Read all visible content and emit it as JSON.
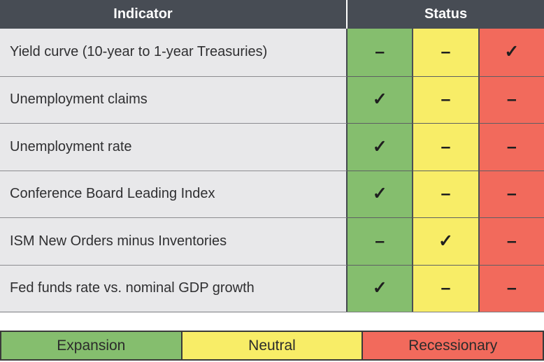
{
  "header": {
    "indicator": "Indicator",
    "status": "Status"
  },
  "rows": [
    {
      "indicator": "Yield curve (10-year to 1-year Treasuries)",
      "cells": [
        "–",
        "–",
        "✓"
      ]
    },
    {
      "indicator": "Unemployment claims",
      "cells": [
        "✓",
        "–",
        "–"
      ]
    },
    {
      "indicator": "Unemployment rate",
      "cells": [
        "✓",
        "–",
        "–"
      ]
    },
    {
      "indicator": "Conference Board Leading Index",
      "cells": [
        "✓",
        "–",
        "–"
      ]
    },
    {
      "indicator": "ISM New Orders minus Inventories",
      "cells": [
        "–",
        "✓",
        "–"
      ]
    },
    {
      "indicator": "Fed funds rate vs. nominal GDP growth",
      "cells": [
        "✓",
        "–",
        "–"
      ]
    }
  ],
  "legend": {
    "expansion": "Expansion",
    "neutral": "Neutral",
    "recessionary": "Recessionary"
  },
  "colors": {
    "header_bg": "#474c54",
    "header_text": "#ffffff",
    "row_bg": "#e8e8ea",
    "row_text": "#2f2f31",
    "expansion": "#85be6e",
    "neutral": "#f8ed67",
    "recessionary": "#f26a5c",
    "mark": "#1f1f1f"
  },
  "chart_data": {
    "type": "table",
    "columns": [
      "Indicator",
      "Status"
    ],
    "status_levels": [
      "Expansion",
      "Neutral",
      "Recessionary"
    ],
    "rows": [
      {
        "indicator": "Yield curve (10-year to 1-year Treasuries)",
        "status": "Recessionary"
      },
      {
        "indicator": "Unemployment claims",
        "status": "Expansion"
      },
      {
        "indicator": "Unemployment rate",
        "status": "Expansion"
      },
      {
        "indicator": "Conference Board Leading Index",
        "status": "Expansion"
      },
      {
        "indicator": "ISM New Orders minus Inventories",
        "status": "Neutral"
      },
      {
        "indicator": "Fed funds rate vs. nominal GDP growth",
        "status": "Expansion"
      }
    ],
    "legend_position": "bottom"
  }
}
